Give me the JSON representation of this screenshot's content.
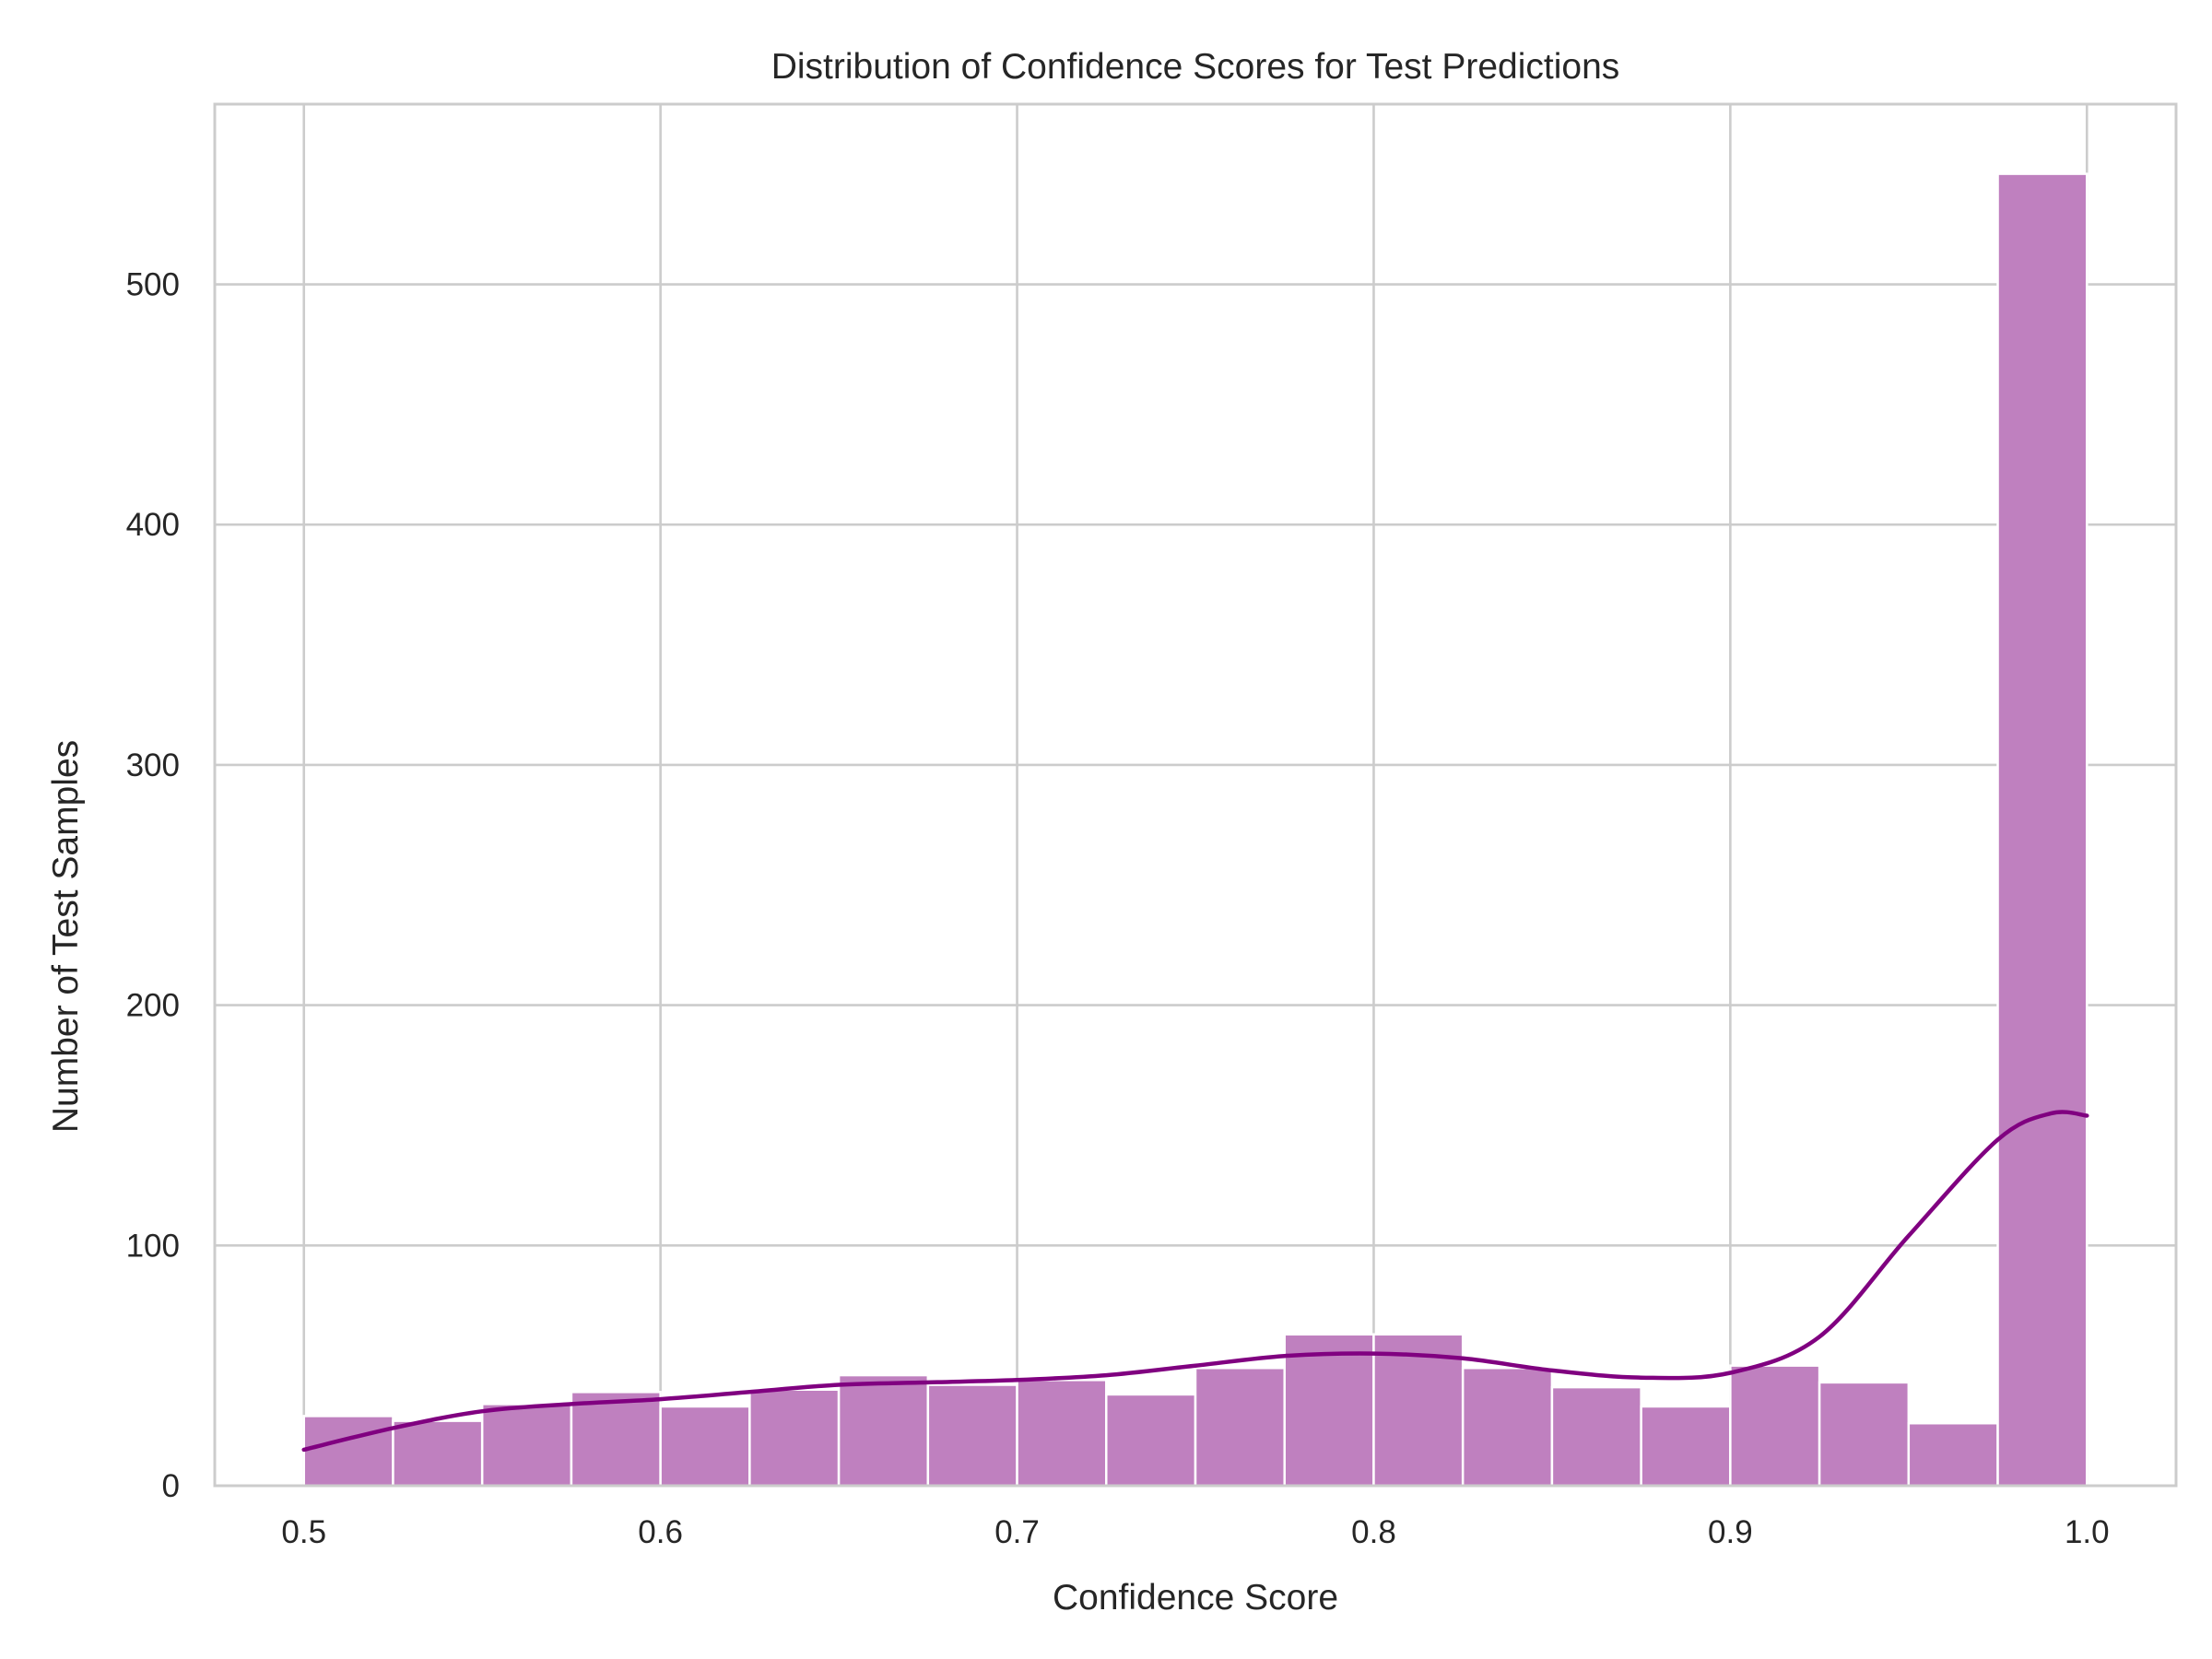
{
  "chart_data": {
    "type": "bar",
    "subtype": "histogram",
    "title": "Distribution of Confidence Scores for Test Predictions",
    "xlabel": "Confidence Score",
    "ylabel": "Number of Test Samples",
    "xlim": [
      0.475,
      1.025
    ],
    "ylim": [
      0,
      575
    ],
    "xticks": [
      "0.5",
      "0.6",
      "0.7",
      "0.8",
      "0.9",
      "1.0"
    ],
    "yticks": [
      "0",
      "100",
      "200",
      "300",
      "400",
      "500"
    ],
    "grid": true,
    "bin_edges": [
      0.5,
      0.525,
      0.55,
      0.575,
      0.6,
      0.625,
      0.65,
      0.675,
      0.7,
      0.725,
      0.75,
      0.775,
      0.8,
      0.825,
      0.85,
      0.875,
      0.9,
      0.925,
      0.95,
      0.975,
      1.0
    ],
    "values": [
      29,
      27,
      34,
      39,
      33,
      40,
      46,
      42,
      44,
      38,
      49,
      63,
      63,
      49,
      41,
      33,
      50,
      43,
      26,
      546
    ],
    "kde_curve": {
      "x": [
        0.5,
        0.525,
        0.55,
        0.575,
        0.6,
        0.625,
        0.65,
        0.675,
        0.7,
        0.725,
        0.75,
        0.775,
        0.8,
        0.825,
        0.85,
        0.875,
        0.9,
        0.925,
        0.95,
        0.975,
        0.99,
        1.0
      ],
      "y": [
        15,
        24,
        31,
        34,
        36,
        39,
        42,
        43,
        44,
        46,
        50,
        54,
        55,
        53,
        48,
        45,
        47,
        62,
        104,
        144,
        155,
        154
      ]
    },
    "colors": {
      "bar": "#bf80bf",
      "kde": "#800080"
    }
  }
}
